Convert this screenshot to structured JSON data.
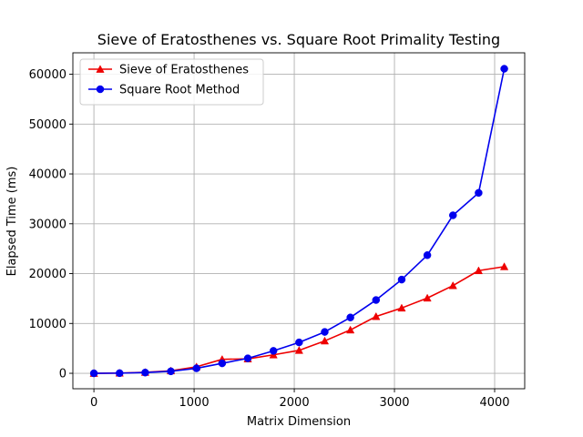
{
  "chart_data": {
    "type": "line",
    "title": "Sieve of Eratosthenes vs. Square Root Primality Testing",
    "xlabel": "Matrix Dimension",
    "ylabel": "Elapsed Time (ms)",
    "xlim": [
      -210,
      4300
    ],
    "ylim": [
      -3100,
      64300
    ],
    "xticks": [
      0,
      1000,
      2000,
      3000,
      4000
    ],
    "yticks": [
      0,
      10000,
      20000,
      30000,
      40000,
      50000,
      60000
    ],
    "grid": true,
    "legend_position": "top-left",
    "series": [
      {
        "name": "Sieve of Eratosthenes",
        "color": "#ee0000",
        "marker": "triangle",
        "x": [
          0,
          256,
          512,
          768,
          1024,
          1280,
          1536,
          1792,
          2048,
          2304,
          2560,
          2816,
          3072,
          3328,
          3584,
          3840,
          4096
        ],
        "y": [
          0,
          50,
          200,
          500,
          1300,
          2800,
          2900,
          3700,
          4600,
          6500,
          8700,
          11400,
          13100,
          15100,
          17600,
          20600,
          21400
        ]
      },
      {
        "name": "Square Root Method",
        "color": "#0000ee",
        "marker": "circle",
        "x": [
          0,
          256,
          512,
          768,
          1024,
          1280,
          1536,
          1792,
          2048,
          2304,
          2560,
          2816,
          3072,
          3328,
          3584,
          3840,
          4096
        ],
        "y": [
          0,
          30,
          150,
          400,
          1000,
          2000,
          3000,
          4500,
          6200,
          8300,
          11200,
          14700,
          18800,
          23700,
          31700,
          36200,
          61100
        ]
      }
    ]
  }
}
